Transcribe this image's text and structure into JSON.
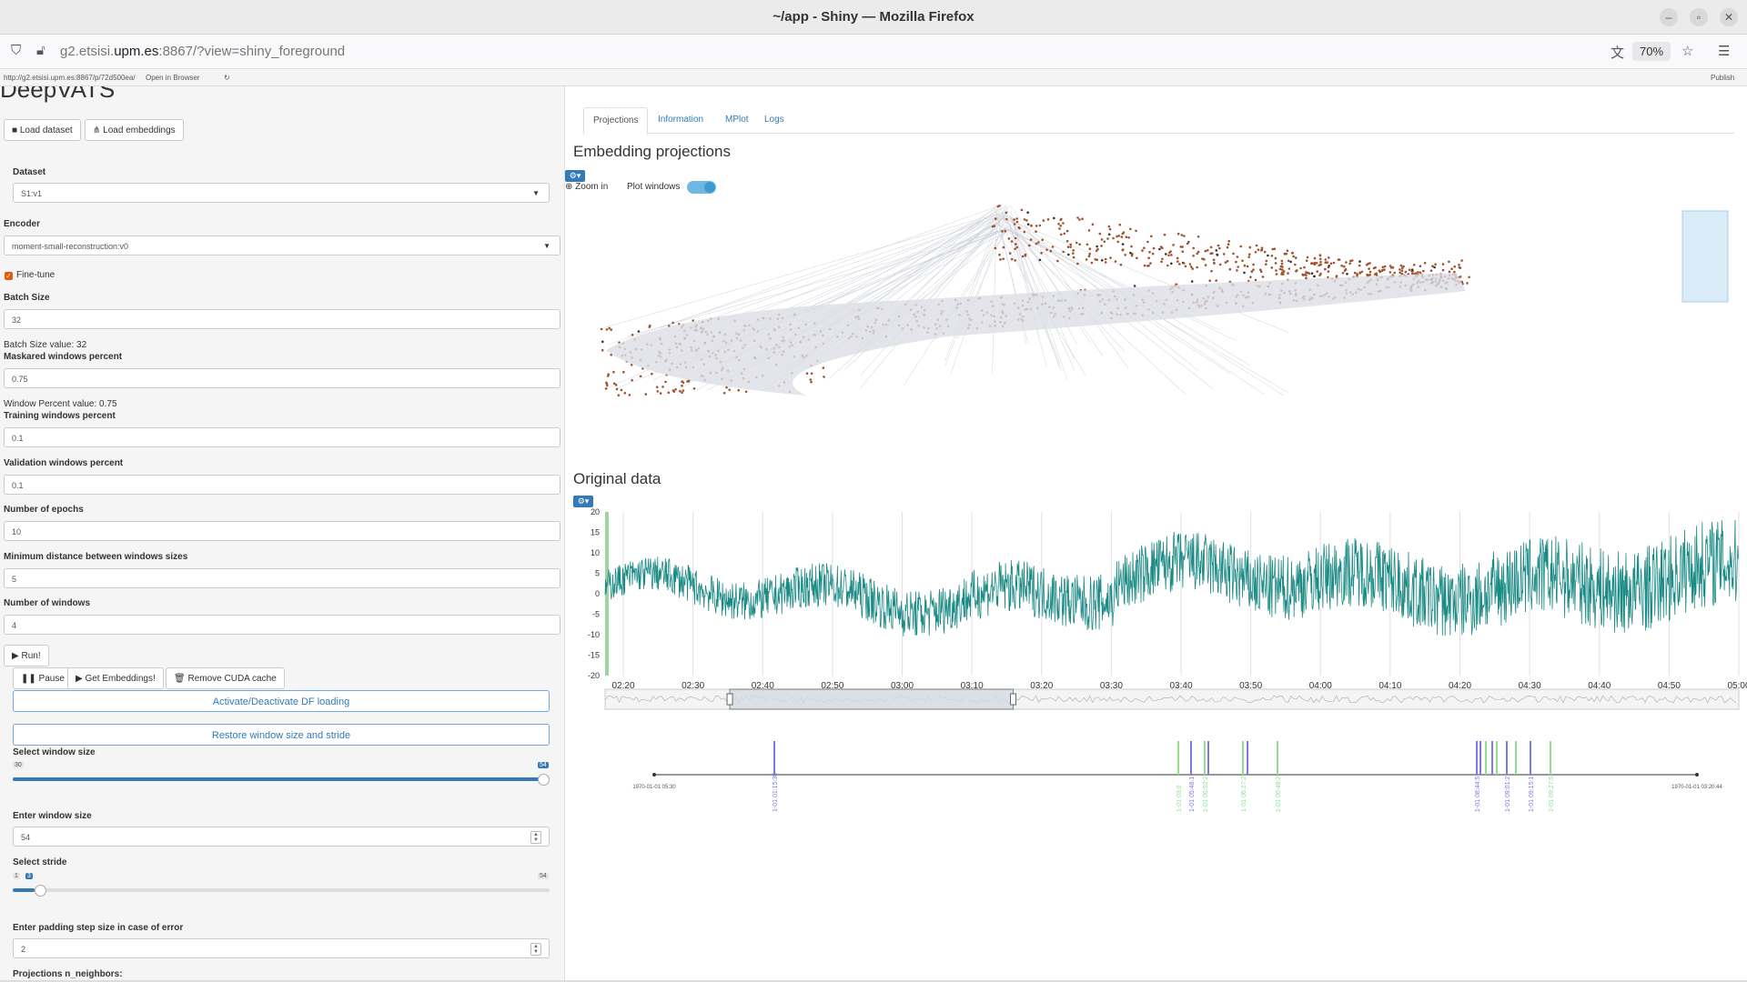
{
  "window": {
    "title": "~/app - Shiny — Mozilla Firefox"
  },
  "browser": {
    "url_host_prefix": "g2.etsisi.",
    "url_host_bold": "upm.es",
    "url_rest": ":8867/?view=shiny_foreground",
    "zoom": "70%",
    "info_url": "http://g2.etsisi.upm.es:8867/p/72d500ea/",
    "open_in_browser": "Open in Browser",
    "publish": "Publish"
  },
  "sidebar": {
    "app_title": "DeepVATS",
    "load_dataset": "Load dataset",
    "load_embeddings": "Load embeddings",
    "dataset_label": "Dataset",
    "dataset_value": "S1:v1",
    "encoder_label": "Encoder",
    "encoder_value": "moment-small-reconstruction:v0",
    "finetune_label": "Fine-tune",
    "batch_label": "Batch Size",
    "batch_value": "32",
    "batch_text": "Batch Size value: 32",
    "masked_label": "Maskared windows percent",
    "masked_value": "0.75",
    "window_percent_text": "Window Percent value: 0.75",
    "training_label": "Training windows percent",
    "training_value": "0.1",
    "validation_label": "Validation windows percent",
    "validation_value": "0.1",
    "epochs_label": "Number of epochs",
    "epochs_value": "10",
    "mindist_label": "Minimum distance between windows sizes",
    "mindist_value": "5",
    "nwindows_label": "Number of windows",
    "nwindows_value": "4",
    "run": "Run!",
    "pause": "Pause",
    "get_embeddings": "Get Embeddings!",
    "remove_cuda": "Remove CUDA cache",
    "activate_df": "Activate/Deactivate DF loading",
    "restore": "Restore window size and stride",
    "select_window_label": "Select window size",
    "window_min": "30",
    "window_max": "54",
    "window_fraction": 1.0,
    "enter_window_label": "Enter window size",
    "enter_window_value": "54",
    "stride_label": "Select stride",
    "stride_min": "1",
    "stride_value": "3",
    "stride_max": "54",
    "stride_fraction": 0.04,
    "padding_label": "Enter padding step size in case of error",
    "padding_value": "2",
    "neighbors_label": "Projections n_neighbors:"
  },
  "main": {
    "tabs": [
      "Projections",
      "Information",
      "MPlot",
      "Logs"
    ],
    "active_tab": 0,
    "projections_title": "Embedding projections",
    "zoom_in": "Zoom in",
    "plot_windows": "Plot windows",
    "original_title": "Original data"
  },
  "chart_data": [
    {
      "type": "scatter",
      "title": "Embedding projections",
      "colors": {
        "points": "#a0522d",
        "selected": "#333333",
        "lines": "#c8ccd6",
        "brush": "#d9ecf8"
      },
      "note_shape": "boomerang cloud of points"
    },
    {
      "type": "line",
      "title": "Original data",
      "x_tick_labels": [
        "02:20",
        "02:30",
        "02:40",
        "02:50",
        "03:00",
        "03:10",
        "03:20",
        "03:30",
        "03:40",
        "03:50",
        "04:00",
        "04:10",
        "04:20",
        "04:30",
        "04:40",
        "04:50",
        "05:00"
      ],
      "y_tick_labels": [
        "20",
        "15",
        "10",
        "5",
        "0",
        "-5",
        "-10",
        "-15",
        "-20"
      ],
      "ylim": [
        -20,
        20
      ],
      "color": "#1a8a85",
      "range_selector_fraction": [
        0.11,
        0.36
      ]
    },
    {
      "type": "timeline",
      "start_label": "1970-01-01 05:30",
      "end_label": "1970-01-01 03:20:44",
      "event_labels": [
        "1-01 01:15:30",
        "1-01 03:0",
        "1-01 05:48:1",
        "1-01 06:02:2",
        "1-01 06:27:2",
        "1-01 06:48:2",
        "1-01 08:44:5",
        "1-01 09:01:2",
        "1-01 09:15:1",
        "1-01 09:27:5"
      ],
      "colors": {
        "blue": "#7b7be0",
        "green": "#8fe08f"
      }
    }
  ]
}
